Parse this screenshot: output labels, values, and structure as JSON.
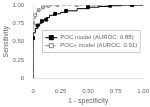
{
  "chart_data": {
    "type": "step",
    "xlabel": "1 - specificity",
    "ylabel": "Sensitivity",
    "xlim": [
      0,
      1.0
    ],
    "ylim": [
      0,
      1.0
    ],
    "xticks": [
      0,
      0.25,
      {
        "value": 0.5,
        "label": "0.50"
      },
      0.75,
      {
        "value": 1.0,
        "label": "1.00"
      }
    ],
    "yticks": [
      0,
      0.25,
      {
        "value": 0.5,
        "label": "0.50"
      },
      0.75,
      {
        "value": 1.0,
        "label": "1.00"
      }
    ],
    "grid": false,
    "legend": "center right",
    "series": [
      {
        "name": "POC model (AUROC: 0.88)",
        "color": "#000000",
        "line_style": "solid",
        "marker": "square",
        "x": [
          0.0,
          0.0,
          0.0,
          0.02,
          0.02,
          0.04,
          0.04,
          0.06,
          0.06,
          0.08,
          0.08,
          0.1,
          0.1,
          0.12,
          0.12,
          0.15,
          0.15,
          0.2,
          0.2,
          0.25,
          0.25,
          0.3,
          0.3,
          0.4,
          0.4,
          0.5,
          0.5,
          0.6,
          0.6,
          0.7,
          0.7,
          0.8,
          0.8,
          0.9,
          0.9,
          1.0
        ],
        "values": [
          0.0,
          0.55,
          0.62,
          0.62,
          0.68,
          0.68,
          0.72,
          0.72,
          0.75,
          0.75,
          0.78,
          0.78,
          0.8,
          0.8,
          0.83,
          0.83,
          0.86,
          0.86,
          0.88,
          0.88,
          0.9,
          0.9,
          0.92,
          0.92,
          0.95,
          0.95,
          0.97,
          0.97,
          0.98,
          0.98,
          0.99,
          0.99,
          1.0,
          1.0,
          1.0,
          1.0
        ],
        "marker_x": [
          0.0,
          0.04,
          0.08,
          0.12,
          0.2,
          0.3,
          0.5,
          0.7,
          0.9
        ],
        "marker_values": [
          0.55,
          0.72,
          0.78,
          0.8,
          0.88,
          0.92,
          0.97,
          0.99,
          1.0
        ]
      },
      {
        "name": "POC+ model (AUROC: 0.91)",
        "color": "#888888",
        "line_style": "dashed",
        "marker": "square_open",
        "x": [
          0.0,
          0.0,
          0.0,
          0.01,
          0.01,
          0.02,
          0.02,
          0.03,
          0.03,
          0.05,
          0.05,
          0.07,
          0.07,
          0.09,
          0.09,
          0.11,
          0.11,
          0.14,
          0.14,
          0.17,
          0.17,
          0.22,
          0.22,
          0.3,
          0.3,
          0.4,
          0.4,
          0.5,
          0.5,
          0.6,
          0.6,
          0.7,
          0.7,
          0.8,
          0.8,
          0.9,
          0.9,
          1.0
        ],
        "values": [
          0.0,
          0.65,
          0.75,
          0.75,
          0.82,
          0.82,
          0.86,
          0.86,
          0.9,
          0.9,
          0.93,
          0.93,
          0.95,
          0.95,
          0.97,
          0.97,
          0.98,
          0.98,
          0.99,
          0.99,
          1.0,
          1.0,
          1.0,
          1.0,
          1.0,
          1.0,
          1.0,
          1.0,
          1.0,
          1.0,
          1.0,
          1.0,
          1.0,
          1.0,
          1.0,
          1.0,
          1.0,
          1.0
        ],
        "marker_x": [
          0.0,
          0.02,
          0.05,
          0.09,
          0.14,
          0.22,
          0.4,
          0.6,
          0.9
        ],
        "marker_values": [
          0.75,
          0.86,
          0.93,
          0.97,
          0.99,
          1.0,
          1.0,
          1.0,
          1.0
        ]
      }
    ]
  }
}
